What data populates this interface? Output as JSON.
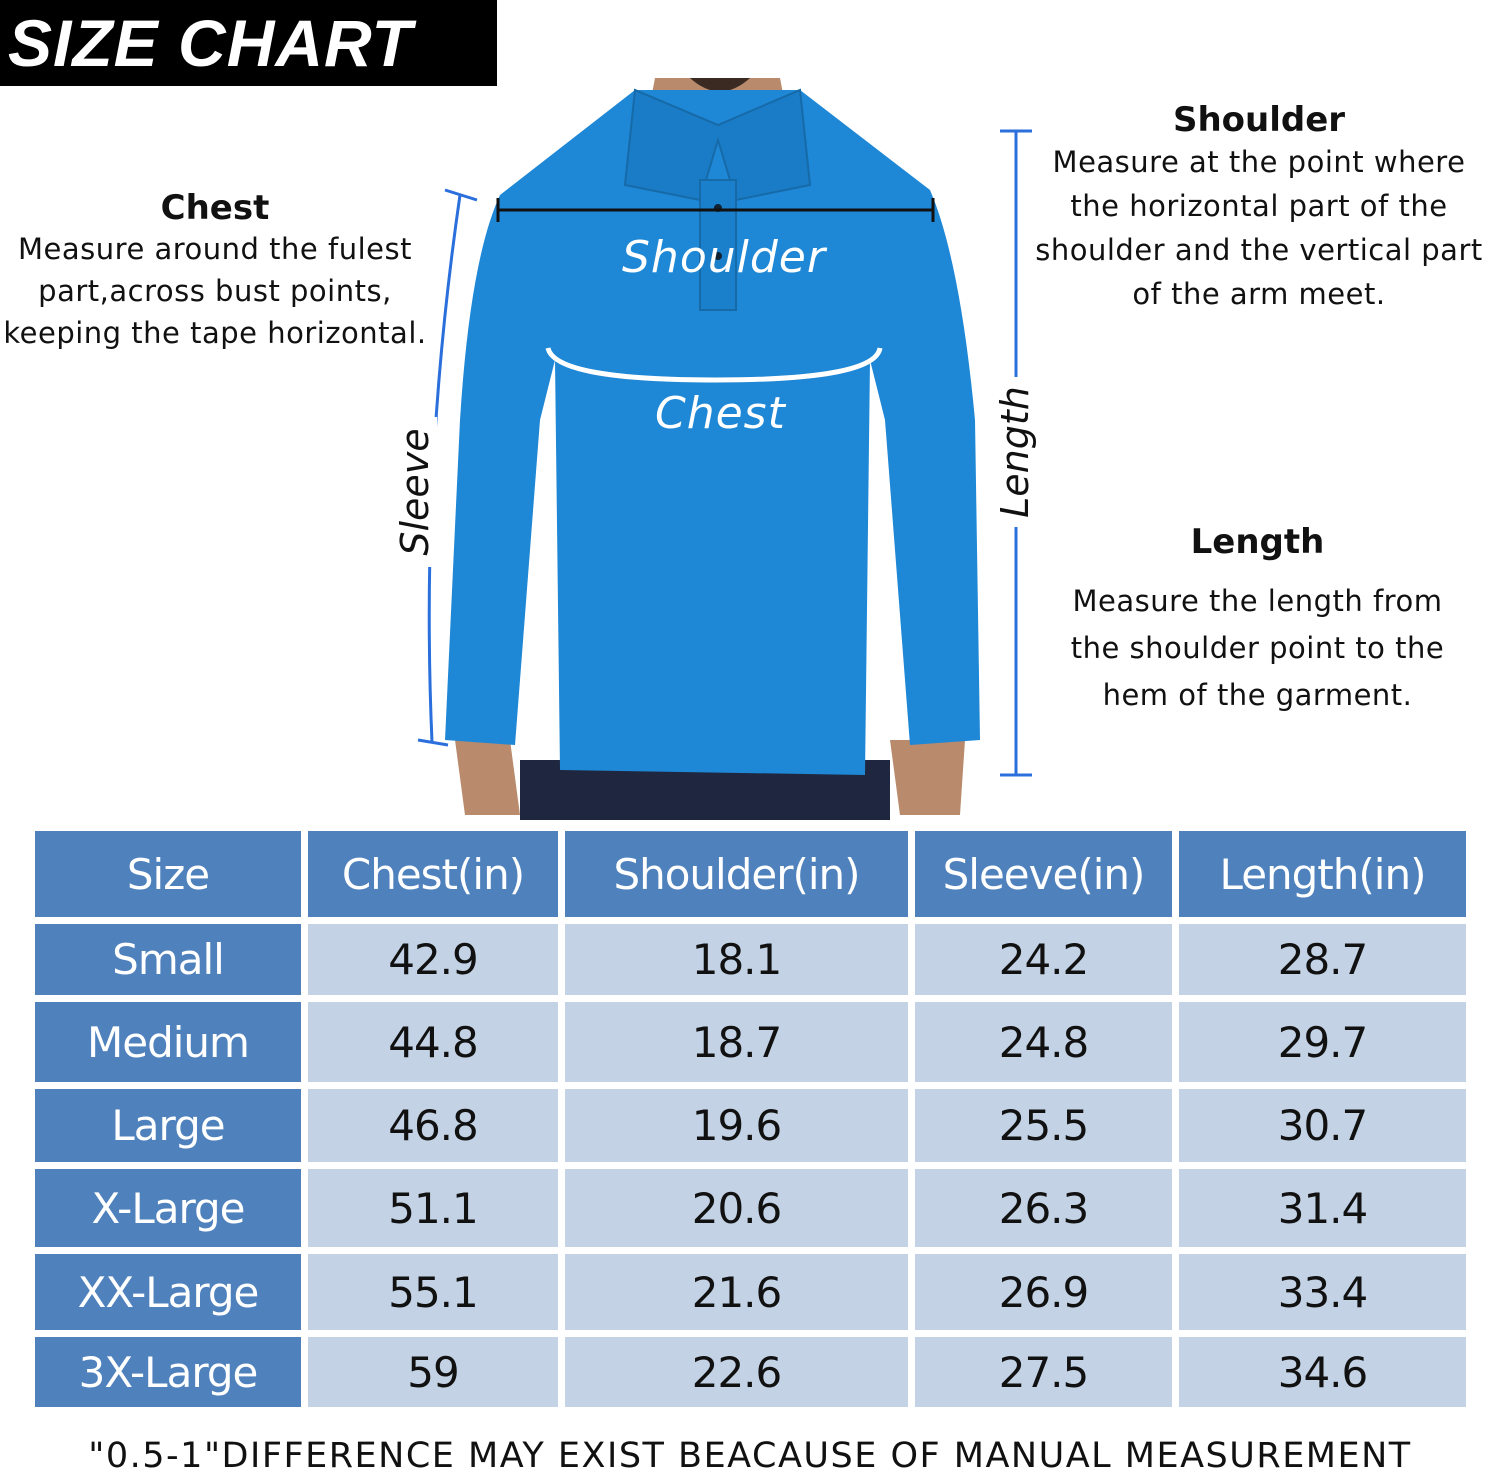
{
  "title": "SIZE CHART",
  "descriptions": {
    "chest": {
      "heading": "Chest",
      "lines": [
        "Measure around the fulest",
        "part,across bust points,",
        "keeping the tape horizontal."
      ]
    },
    "shoulder": {
      "heading": "Shoulder",
      "lines": [
        "Measure at the point where",
        "the horizontal part of the",
        "shoulder and the vertical part",
        "of the arm meet."
      ]
    },
    "length": {
      "heading": "Length",
      "lines": [
        "Measure the length from",
        "the shoulder point to the",
        "hem of the garment."
      ]
    }
  },
  "diagram_labels": {
    "shoulder": "Shoulder",
    "chest": "Chest",
    "sleeve": "Sleeve",
    "length": "Length"
  },
  "colors": {
    "header": "#4f81bd",
    "cell": "#c3d2e5",
    "shirt": "#1e87d6",
    "measure_line": "#2a6fdc"
  },
  "table": {
    "headers": [
      "Size",
      "Chest(in)",
      "Shoulder(in)",
      "Sleeve(in)",
      "Length(in)"
    ],
    "rows": [
      [
        "Small",
        "42.9",
        "18.1",
        "24.2",
        "28.7"
      ],
      [
        "Medium",
        "44.8",
        "18.7",
        "24.8",
        "29.7"
      ],
      [
        "Large",
        "46.8",
        "19.6",
        "25.5",
        "30.7"
      ],
      [
        "X-Large",
        "51.1",
        "20.6",
        "26.3",
        "31.4"
      ],
      [
        "XX-Large",
        "55.1",
        "21.6",
        "26.9",
        "33.4"
      ],
      [
        "3X-Large",
        "59",
        "22.6",
        "27.5",
        "34.6"
      ]
    ]
  },
  "note": "\"0.5-1\"DIFFERENCE MAY EXIST BEACAUSE OF MANUAL MEASUREMENT"
}
